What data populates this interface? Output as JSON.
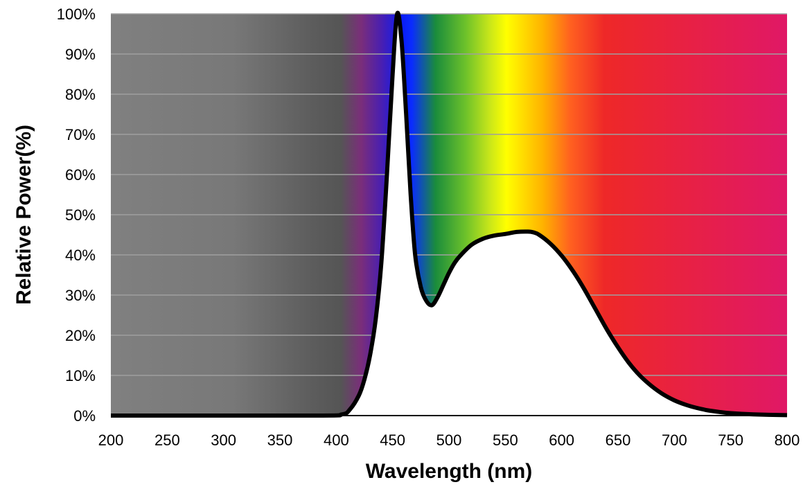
{
  "chart_data": {
    "type": "area",
    "xlabel": "Wavelength (nm)",
    "ylabel": "Relative Power(%)",
    "xlim": [
      200,
      800
    ],
    "ylim": [
      0,
      100
    ],
    "x_ticks": [
      "200",
      "250",
      "300",
      "350",
      "400",
      "450",
      "500",
      "550",
      "600",
      "650",
      "700",
      "750",
      "800"
    ],
    "y_ticks": [
      "0%",
      "10%",
      "20%",
      "30%",
      "40%",
      "50%",
      "60%",
      "70%",
      "80%",
      "90%",
      "100%"
    ],
    "grid": true,
    "background": "visible light spectrum gradient",
    "series": [
      {
        "x": [
          200,
          380,
          405,
          412,
          420,
          425,
          430,
          435,
          440,
          445,
          450,
          454,
          458,
          462,
          466,
          470,
          475,
          480,
          485,
          490,
          495,
          500,
          505,
          510,
          520,
          530,
          540,
          550,
          560,
          570,
          575,
          580,
          590,
          600,
          610,
          620,
          630,
          640,
          650,
          660,
          670,
          680,
          690,
          700,
          710,
          720,
          730,
          740,
          750,
          770,
          800
        ],
        "y": [
          0,
          0,
          0.3,
          1.5,
          5,
          9,
          15,
          24,
          38,
          60,
          85,
          100,
          93,
          75,
          55,
          40,
          32,
          28.5,
          27.5,
          29.5,
          32.5,
          35.5,
          38,
          39.8,
          42.5,
          44,
          44.8,
          45.2,
          45.7,
          45.8,
          45.6,
          45,
          42.8,
          39.8,
          36,
          31.5,
          26.5,
          21.5,
          17,
          13,
          9.8,
          7.3,
          5.3,
          3.8,
          2.7,
          1.9,
          1.3,
          0.9,
          0.6,
          0.3,
          0.1
        ]
      }
    ]
  },
  "colors": {
    "curve": "#000000",
    "gridline": "#a0a0a0",
    "spectrum_stops": [
      "#808080",
      "#7a7a7a",
      "#555555",
      "#7a2e7a",
      "#4a1fb0",
      "#0a1cf5",
      "#0a30ff",
      "#1a8c3c",
      "#6ec22a",
      "#ffff00",
      "#ffb000",
      "#ff6020",
      "#ee2828",
      "#e01866"
    ]
  }
}
